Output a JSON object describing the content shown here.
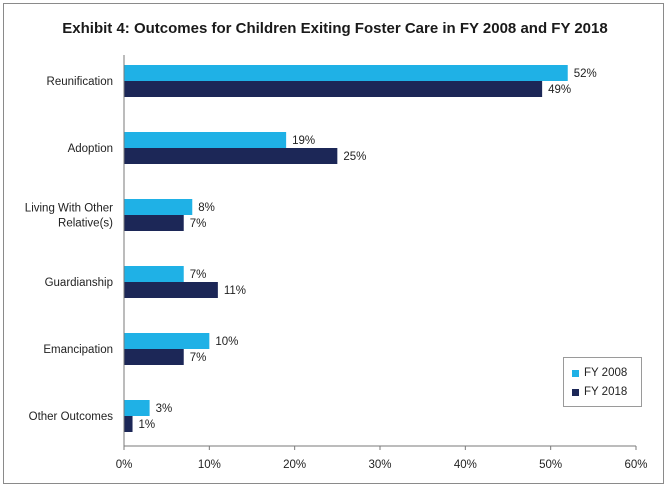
{
  "chart_data": {
    "type": "bar",
    "orientation": "horizontal",
    "title": "Exhibit 4: Outcomes for Children Exiting Foster Care in FY 2008 and FY 2018",
    "categories": [
      [
        "Reunification"
      ],
      [
        "Adoption"
      ],
      [
        "Living With Other",
        "Relative(s)"
      ],
      [
        "Guardianship"
      ],
      [
        "Emancipation"
      ],
      [
        "Other Outcomes"
      ]
    ],
    "series": [
      {
        "name": "FY 2008",
        "color": "#1fb1e6",
        "values": [
          52,
          19,
          8,
          7,
          10,
          3
        ]
      },
      {
        "name": "FY 2018",
        "color": "#1c2757",
        "values": [
          49,
          25,
          7,
          11,
          7,
          1
        ]
      }
    ],
    "value_labels": [
      [
        "52%",
        "19%",
        "8%",
        "7%",
        "10%",
        "3%"
      ],
      [
        "49%",
        "25%",
        "7%",
        "11%",
        "7%",
        "1%"
      ]
    ],
    "xlim": [
      0,
      60
    ],
    "xticks": [
      0,
      10,
      20,
      30,
      40,
      50,
      60
    ],
    "xtick_labels": [
      "0%",
      "10%",
      "20%",
      "30%",
      "40%",
      "50%",
      "60%"
    ],
    "grid": false,
    "legend_position": "bottom-right"
  }
}
